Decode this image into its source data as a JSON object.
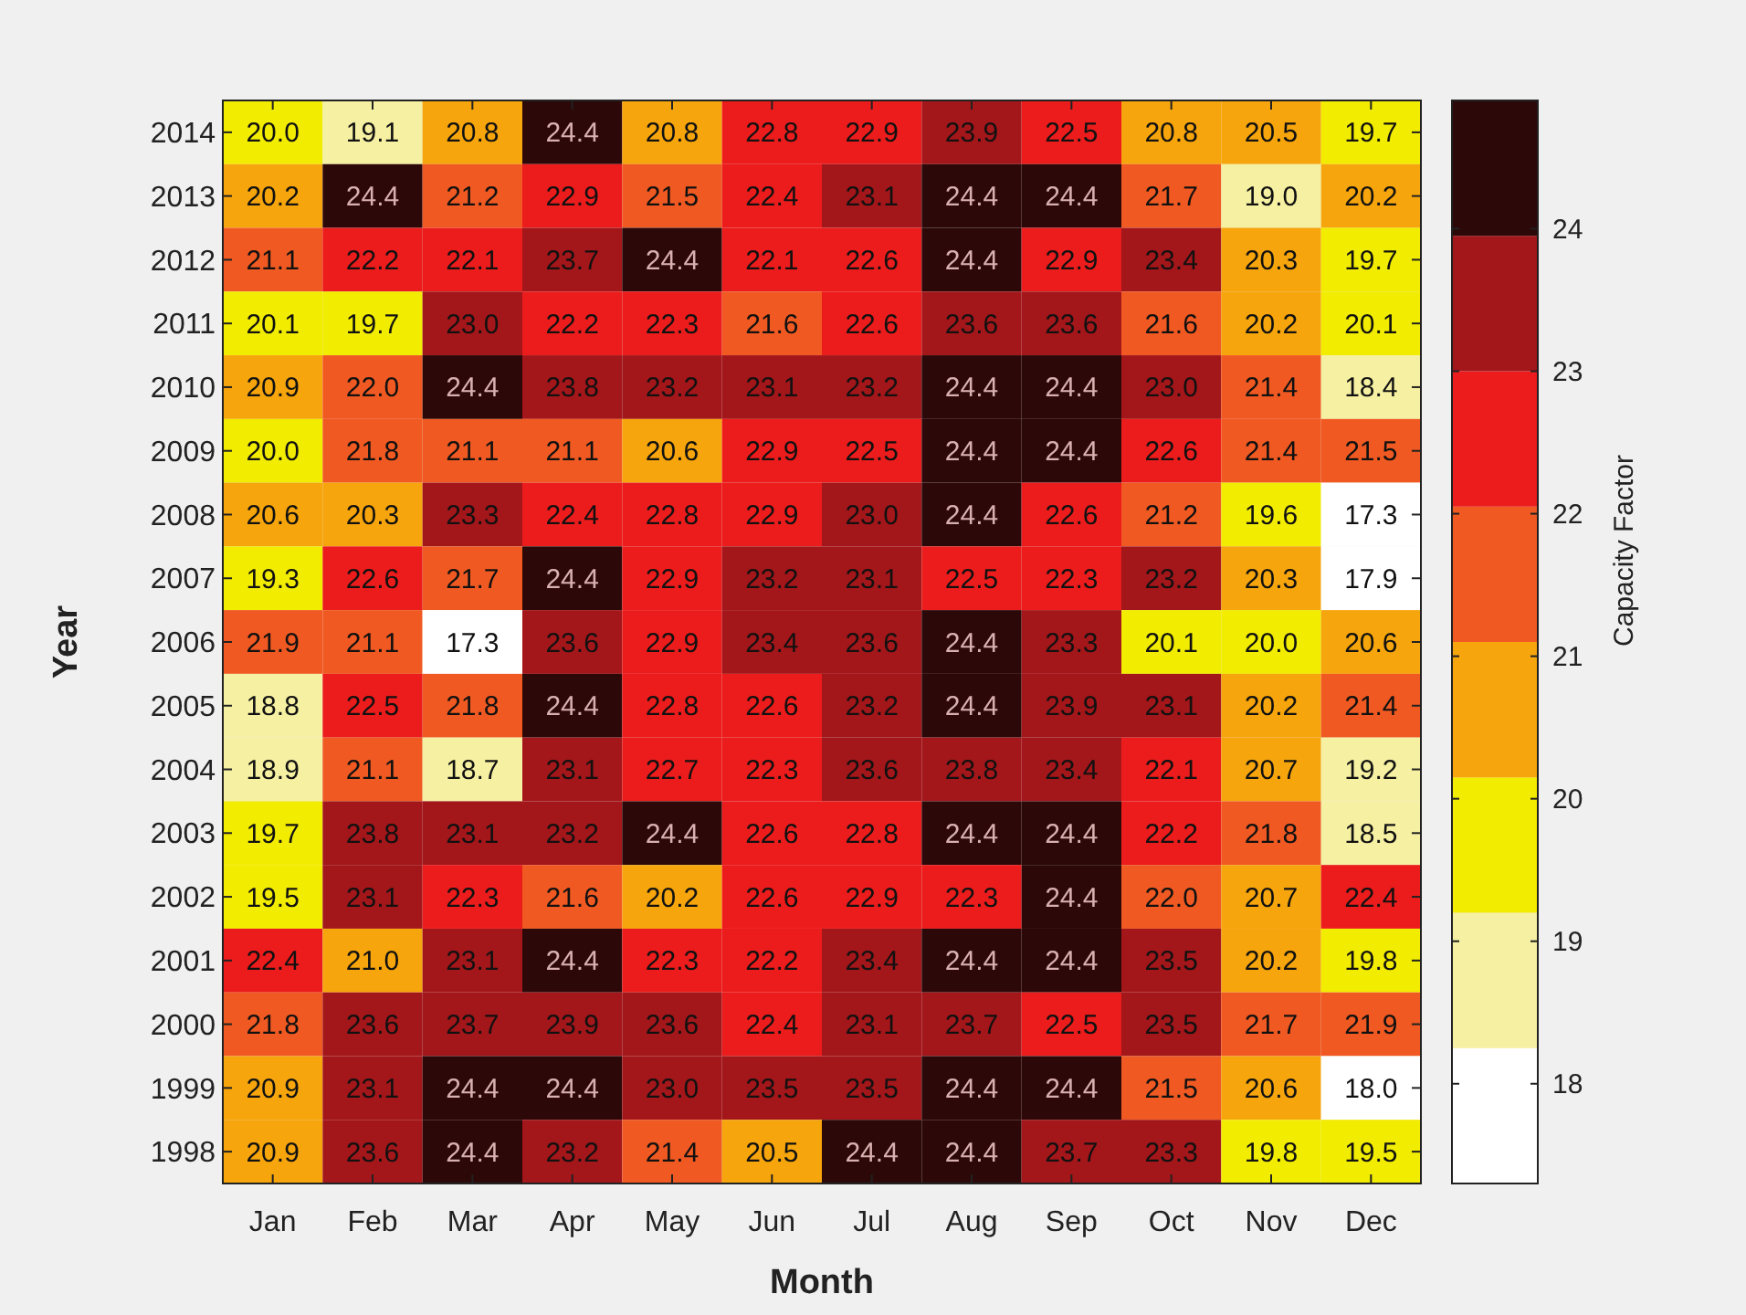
{
  "chart_data": {
    "type": "heatmap",
    "xlabel": "Month",
    "ylabel": "Year",
    "clabel": "Capacity Factor",
    "categories": [
      "Jan",
      "Feb",
      "Mar",
      "Apr",
      "May",
      "Jun",
      "Jul",
      "Aug",
      "Sep",
      "Oct",
      "Nov",
      "Dec"
    ],
    "y_categories": [
      "2014",
      "2013",
      "2012",
      "2011",
      "2010",
      "2009",
      "2008",
      "2007",
      "2006",
      "2005",
      "2004",
      "2003",
      "2002",
      "2001",
      "2000",
      "1999",
      "1998"
    ],
    "cells": [
      [
        20.0,
        19.1,
        20.8,
        24.4,
        20.8,
        22.8,
        22.9,
        23.9,
        22.5,
        20.8,
        20.5,
        19.7
      ],
      [
        20.2,
        24.4,
        21.2,
        22.9,
        21.5,
        22.4,
        23.1,
        24.4,
        24.4,
        21.7,
        19.0,
        20.2
      ],
      [
        21.1,
        22.2,
        22.1,
        23.7,
        24.4,
        22.1,
        22.6,
        24.4,
        22.9,
        23.4,
        20.3,
        19.7
      ],
      [
        20.1,
        19.7,
        23.0,
        22.2,
        22.3,
        21.6,
        22.6,
        23.6,
        23.6,
        21.6,
        20.2,
        20.1
      ],
      [
        20.9,
        22.0,
        24.4,
        23.8,
        23.2,
        23.1,
        23.2,
        24.4,
        24.4,
        23.0,
        21.4,
        18.4
      ],
      [
        20.0,
        21.8,
        21.1,
        21.1,
        20.6,
        22.9,
        22.5,
        24.4,
        24.4,
        22.6,
        21.4,
        21.5
      ],
      [
        20.6,
        20.3,
        23.3,
        22.4,
        22.8,
        22.9,
        23.0,
        24.4,
        22.6,
        21.2,
        19.6,
        17.3
      ],
      [
        19.3,
        22.6,
        21.7,
        24.4,
        22.9,
        23.2,
        23.1,
        22.5,
        22.3,
        23.2,
        20.3,
        17.9
      ],
      [
        21.9,
        21.1,
        17.3,
        23.6,
        22.9,
        23.4,
        23.6,
        24.4,
        23.3,
        20.1,
        20.0,
        20.6
      ],
      [
        18.8,
        22.5,
        21.8,
        24.4,
        22.8,
        22.6,
        23.2,
        24.4,
        23.9,
        23.1,
        20.2,
        21.4
      ],
      [
        18.9,
        21.1,
        18.7,
        23.1,
        22.7,
        22.3,
        23.6,
        23.8,
        23.4,
        22.1,
        20.7,
        19.2
      ],
      [
        19.7,
        23.8,
        23.1,
        23.2,
        24.4,
        22.6,
        22.8,
        24.4,
        24.4,
        22.2,
        21.8,
        18.5
      ],
      [
        19.5,
        23.1,
        22.3,
        21.6,
        20.2,
        22.6,
        22.9,
        22.3,
        24.4,
        22.0,
        20.7,
        22.4
      ],
      [
        22.4,
        21.0,
        23.1,
        24.4,
        22.3,
        22.2,
        23.4,
        24.4,
        24.4,
        23.5,
        20.2,
        19.8
      ],
      [
        21.8,
        23.6,
        23.7,
        23.9,
        23.6,
        22.4,
        23.1,
        23.7,
        22.5,
        23.5,
        21.7,
        21.9
      ],
      [
        20.9,
        23.1,
        24.4,
        24.4,
        23.0,
        23.5,
        23.5,
        24.4,
        24.4,
        21.5,
        20.6,
        18.0
      ],
      [
        20.9,
        23.6,
        24.4,
        23.2,
        21.4,
        20.5,
        24.4,
        24.4,
        23.7,
        23.3,
        19.8,
        19.5
      ]
    ],
    "cell_labels": [
      [
        "20.0",
        "19.1",
        "20.8",
        "24.4",
        "20.8",
        "22.8",
        "22.9",
        "23.9",
        "22.5",
        "20.8",
        "20.5",
        "19.7"
      ],
      [
        "20.2",
        "24.4",
        "21.2",
        "22.9",
        "21.5",
        "22.4",
        "23.1",
        "24.4",
        "24.4",
        "21.7",
        "19.0",
        "20.2"
      ],
      [
        "21.1",
        "22.2",
        "22.1",
        "23.7",
        "24.4",
        "22.1",
        "22.6",
        "24.4",
        "22.9",
        "23.4",
        "20.3",
        "19.7"
      ],
      [
        "20.1",
        "19.7",
        "23.0",
        "22.2",
        "22.3",
        "21.6",
        "22.6",
        "23.6",
        "23.6",
        "21.6",
        "20.2",
        "20.1"
      ],
      [
        "20.9",
        "22.0",
        "24.4",
        "23.8",
        "23.2",
        "23.1",
        "23.2",
        "24.4",
        "24.4",
        "23.0",
        "21.4",
        "18.4"
      ],
      [
        "20.0",
        "21.8",
        "21.1",
        "21.1",
        "20.6",
        "22.9",
        "22.5",
        "24.4",
        "24.4",
        "22.6",
        "21.4",
        "21.5"
      ],
      [
        "20.6",
        "20.3",
        "23.3",
        "22.4",
        "22.8",
        "22.9",
        "23.0",
        "24.4",
        "22.6",
        "21.2",
        "19.6",
        "17.3"
      ],
      [
        "19.3",
        "22.6",
        "21.7",
        "24.4",
        "22.9",
        "23.2",
        "23.1",
        "22.5",
        "22.3",
        "23.2",
        "20.3",
        "17.9"
      ],
      [
        "21.9",
        "21.1",
        "17.3",
        "23.6",
        "22.9",
        "23.4",
        "23.6",
        "24.4",
        "23.3",
        "20.1",
        "20.0",
        "20.6"
      ],
      [
        "18.8",
        "22.5",
        "21.8",
        "24.4",
        "22.8",
        "22.6",
        "23.2",
        "24.4",
        "23.9",
        "23.1",
        "20.2",
        "21.4"
      ],
      [
        "18.9",
        "21.1",
        "18.7",
        "23.1",
        "22.7",
        "22.3",
        "23.6",
        "23.8",
        "23.4",
        "22.1",
        "20.7",
        "19.2"
      ],
      [
        "19.7",
        "23.8",
        "23.1",
        "23.2",
        "24.4",
        "22.6",
        "22.8",
        "24.4",
        "24.4",
        "22.2",
        "21.8",
        "18.5"
      ],
      [
        "19.5",
        "23.1",
        "22.3",
        "21.6",
        "20.2",
        "22.6",
        "22.9",
        "22.3",
        "24.4",
        "22.0",
        "20.7",
        "22.4"
      ],
      [
        "22.4",
        "21.0",
        "23.1",
        "24.4",
        "22.3",
        "22.2",
        "23.4",
        "24.4",
        "24.4",
        "23.5",
        "20.2",
        "19.8"
      ],
      [
        "21.8",
        "23.6",
        "23.7",
        "23.9",
        "23.6",
        "22.4",
        "23.1",
        "23.7",
        "22.5",
        "23.5",
        "21.7",
        "21.9"
      ],
      [
        "20.9",
        "23.1",
        "24.4",
        "24.4",
        "23.0",
        "23.5",
        "23.5",
        "24.4",
        "24.4",
        "21.5",
        "20.6",
        "18.0"
      ],
      [
        "20.9",
        "23.6",
        "24.4",
        "23.2",
        "21.4",
        "20.5",
        "24.4",
        "24.4",
        "23.7",
        "23.3",
        "19.8",
        "19.5"
      ]
    ],
    "clim": [
      17.3,
      24.9
    ],
    "cticks": [
      18,
      19,
      20,
      21,
      22,
      23,
      24
    ]
  }
}
